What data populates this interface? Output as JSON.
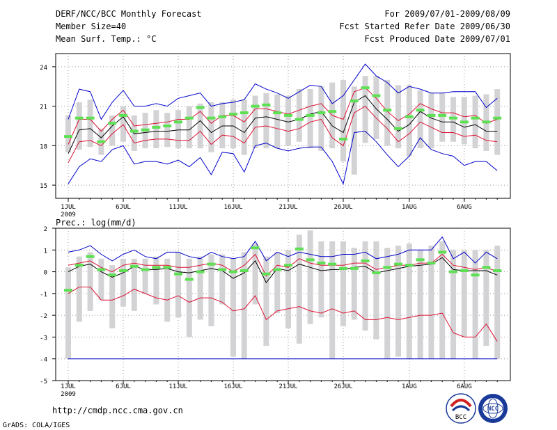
{
  "header": {
    "title": "DERF/NCC/BCC Monthly Forecast",
    "member_size": "Member Size=40",
    "variable": "Mean Surf. Temp.: °C",
    "period": "For 2009/07/01-2009/08/09",
    "fcst_started": "Fcst Started Refer Date 2009/06/30",
    "fcst_produced": "Fcst Produced Date 2009/07/01"
  },
  "footer": {
    "url": "http://cmdp.ncc.cma.gov.cn",
    "grads": "GrADS: COLA/IGES",
    "logo_bcc_label": "BCC",
    "logo_ncc_label": "NCC"
  },
  "colors": {
    "box": "#d3d3d5",
    "median": "#5de052",
    "mean": "#000000",
    "std": "#dd1133",
    "envelope": "#0000cc",
    "grid": "#999999"
  },
  "chart_data": [
    {
      "type": "box-line",
      "title": "Mean Surf. Temp.: °C",
      "xlabel": "",
      "ylabel": "°C",
      "ylim": [
        14,
        25
      ],
      "yticks": [
        15,
        18,
        21,
        24
      ],
      "ytick_labels": [
        "15",
        "18",
        "21",
        "24"
      ],
      "xticks": [
        1,
        6,
        11,
        16,
        21,
        26,
        32,
        37
      ],
      "xtick_labels": [
        "1JUL",
        "6JUL",
        "11JUL",
        "16JUL",
        "21JUL",
        "26JUL",
        "1AUG",
        "6AUG"
      ],
      "year_label": "2009",
      "days": [
        1,
        2,
        3,
        4,
        5,
        6,
        7,
        8,
        9,
        10,
        11,
        12,
        13,
        14,
        15,
        16,
        17,
        18,
        19,
        20,
        21,
        22,
        23,
        24,
        25,
        26,
        27,
        28,
        29,
        30,
        31,
        32,
        33,
        34,
        35,
        36,
        37,
        38,
        39,
        40
      ],
      "box_low": [
        17.5,
        17.7,
        17.9,
        17.3,
        18.0,
        18.3,
        17.6,
        17.8,
        17.8,
        17.9,
        17.8,
        17.8,
        17.8,
        17.5,
        17.8,
        17.8,
        17.3,
        17.8,
        17.8,
        17.8,
        18.0,
        18.3,
        17.8,
        17.6,
        17.8,
        16.8,
        15.8,
        18.2,
        18.5,
        18.0,
        17.8,
        17.2,
        17.8,
        17.8,
        18.3,
        18.3,
        18.1,
        17.8,
        17.6,
        17.3
      ],
      "box_high": [
        20.3,
        21.3,
        21.5,
        19.3,
        20.3,
        21.0,
        20.3,
        20.5,
        20.7,
        20.5,
        20.7,
        21.0,
        21.2,
        21.3,
        21.3,
        21.5,
        21.5,
        21.8,
        22.0,
        21.9,
        21.8,
        22.3,
        22.3,
        22.5,
        22.8,
        23.0,
        22.5,
        23.3,
        23.3,
        23.0,
        22.6,
        22.6,
        22.2,
        22.0,
        22.0,
        21.7,
        21.7,
        21.8,
        21.9,
        22.3
      ],
      "median": [
        18.7,
        20.1,
        20.1,
        18.3,
        19.7,
        20.3,
        19.1,
        19.2,
        19.4,
        19.5,
        19.8,
        20.1,
        20.9,
        20.1,
        20.2,
        20.4,
        20.5,
        21.0,
        21.1,
        20.5,
        20.3,
        20.0,
        20.3,
        20.5,
        20.6,
        18.5,
        21.4,
        22.4,
        21.8,
        20.7,
        19.3,
        20.2,
        20.7,
        20.3,
        20.3,
        20.1,
        19.8,
        20.1,
        19.8,
        20.1
      ],
      "mean": [
        17.4,
        19.2,
        19.3,
        18.6,
        19.5,
        20.2,
        18.9,
        19.0,
        19.1,
        19.1,
        19.2,
        19.2,
        19.9,
        19.0,
        19.5,
        19.5,
        19.0,
        20.1,
        20.2,
        20.0,
        19.8,
        20.0,
        20.4,
        20.6,
        19.5,
        19.0,
        21.3,
        21.8,
        20.8,
        20.0,
        19.1,
        19.6,
        20.6,
        20.1,
        19.8,
        19.8,
        19.4,
        19.6,
        19.1,
        19.1
      ],
      "std_high": [
        18.1,
        20.0,
        20.0,
        19.1,
        20.0,
        20.7,
        19.5,
        19.6,
        19.7,
        19.8,
        20.0,
        20.0,
        20.6,
        19.7,
        20.3,
        20.3,
        19.8,
        20.8,
        20.8,
        20.6,
        20.4,
        20.7,
        21.0,
        21.2,
        20.3,
        20.0,
        22.1,
        22.4,
        21.6,
        20.6,
        19.9,
        20.4,
        21.2,
        20.8,
        20.5,
        20.5,
        20.2,
        20.3,
        19.7,
        20.0
      ],
      "std_low": [
        16.7,
        18.3,
        18.4,
        18.0,
        18.9,
        19.6,
        18.2,
        18.4,
        18.5,
        18.5,
        18.4,
        18.4,
        19.1,
        18.1,
        18.8,
        18.7,
        18.2,
        19.4,
        19.5,
        19.3,
        19.1,
        19.3,
        19.8,
        20.0,
        18.6,
        18.0,
        20.5,
        21.0,
        20.1,
        19.3,
        18.3,
        18.9,
        19.8,
        19.4,
        19.0,
        19.0,
        18.7,
        18.8,
        18.4,
        18.3
      ],
      "max": [
        20.0,
        22.3,
        22.1,
        20.0,
        21.3,
        22.2,
        21.0,
        21.0,
        21.2,
        21.0,
        21.6,
        21.8,
        22.0,
        21.0,
        21.2,
        21.3,
        21.5,
        22.7,
        22.3,
        22.0,
        21.6,
        22.1,
        22.6,
        22.5,
        21.2,
        21.8,
        23.0,
        24.2,
        23.3,
        22.8,
        22.0,
        22.5,
        22.3,
        22.0,
        22.0,
        22.1,
        22.1,
        22.1,
        20.9,
        21.6
      ],
      "min": [
        15.1,
        16.4,
        17.0,
        16.8,
        17.7,
        18.0,
        16.6,
        16.8,
        16.8,
        16.6,
        16.9,
        16.4,
        17.1,
        15.8,
        17.5,
        17.4,
        16.0,
        18.0,
        18.2,
        17.8,
        17.6,
        17.8,
        17.9,
        17.9,
        16.8,
        15.1,
        19.0,
        19.1,
        18.3,
        17.3,
        16.4,
        17.2,
        18.6,
        17.7,
        17.4,
        17.2,
        16.5,
        16.8,
        16.8,
        16.1
      ]
    },
    {
      "type": "box-line",
      "title": "Prec.: log(mm/d)",
      "xlabel": "",
      "ylabel": "log(mm/d)",
      "ylim": [
        -5,
        2
      ],
      "yticks": [
        -5,
        -4,
        -3,
        -2,
        -1,
        0,
        1,
        2
      ],
      "ytick_labels": [
        "-5",
        "-4",
        "-3",
        "-2",
        "-1",
        "0",
        "1",
        "2"
      ],
      "xticks": [
        1,
        6,
        11,
        16,
        21,
        26,
        32,
        37
      ],
      "xtick_labels": [
        "1JUL",
        "6JUL",
        "11JUL",
        "16JUL",
        "21JUL",
        "26JUL",
        "1AUG",
        "6AUG"
      ],
      "year_label": "2009",
      "days": [
        1,
        2,
        3,
        4,
        5,
        6,
        7,
        8,
        9,
        10,
        11,
        12,
        13,
        14,
        15,
        16,
        17,
        18,
        19,
        20,
        21,
        22,
        23,
        24,
        25,
        26,
        27,
        28,
        29,
        30,
        31,
        32,
        33,
        34,
        35,
        36,
        37,
        38,
        39,
        40
      ],
      "box_low": [
        -4.0,
        -2.3,
        -1.8,
        -1.3,
        -2.6,
        -1.6,
        -1.8,
        -1.0,
        -1.5,
        -2.3,
        -2.1,
        -3.0,
        -2.2,
        -2.5,
        -1.5,
        -3.9,
        -4.0,
        -1.5,
        -3.4,
        -1.9,
        -2.6,
        -3.3,
        -2.4,
        -2.1,
        -4.0,
        -2.5,
        -2.2,
        -2.7,
        -3.1,
        -4.0,
        -3.9,
        -4.0,
        -4.0,
        -4.0,
        -4.0,
        -4.0,
        -3.0,
        -4.0,
        -3.4,
        -4.0
      ],
      "box_high": [
        0.2,
        0.7,
        0.9,
        0.6,
        0.3,
        0.6,
        0.6,
        0.6,
        0.7,
        0.6,
        0.9,
        0.6,
        0.7,
        0.8,
        0.8,
        0.6,
        0.9,
        1.3,
        0.7,
        0.9,
        1.0,
        1.7,
        1.9,
        1.4,
        1.4,
        1.4,
        1.1,
        1.4,
        1.4,
        1.1,
        1.2,
        1.3,
        1.0,
        1.2,
        1.4,
        1.0,
        1.0,
        1.0,
        1.0,
        1.2
      ],
      "median": [
        -0.85,
        0.3,
        0.7,
        0.1,
        -0.15,
        0.05,
        0.25,
        0.1,
        0.2,
        0.2,
        -0.1,
        -0.35,
        0.0,
        0.35,
        0.1,
        0.0,
        0.05,
        1.1,
        -0.1,
        0.1,
        0.3,
        1.05,
        0.55,
        0.4,
        0.35,
        0.15,
        0.15,
        0.5,
        -0.05,
        0.2,
        0.35,
        0.3,
        0.55,
        0.4,
        0.9,
        0.0,
        0.05,
        -0.15,
        0.2,
        0.05
      ],
      "mean": [
        0.0,
        0.25,
        0.35,
        0.0,
        -0.25,
        -0.05,
        0.25,
        0.1,
        0.1,
        0.15,
        0.0,
        -0.05,
        0.05,
        0.15,
        0.05,
        -0.3,
        -0.05,
        0.5,
        -0.5,
        0.15,
        0.05,
        0.35,
        0.2,
        0.05,
        0.1,
        0.1,
        0.2,
        0.25,
        -0.05,
        0.05,
        0.15,
        0.25,
        0.3,
        0.35,
        0.65,
        0.1,
        0.05,
        0.05,
        0.05,
        -0.15
      ],
      "std_high": [
        0.3,
        0.4,
        0.5,
        0.2,
        0.0,
        0.3,
        0.4,
        0.3,
        0.3,
        0.3,
        0.2,
        0.2,
        0.3,
        0.4,
        0.3,
        0.0,
        0.3,
        0.8,
        -0.2,
        0.3,
        0.2,
        0.6,
        0.4,
        0.3,
        0.3,
        0.3,
        0.4,
        0.4,
        0.1,
        0.2,
        0.3,
        0.3,
        0.4,
        0.4,
        0.8,
        0.3,
        0.2,
        0.1,
        0.2,
        0.0
      ],
      "std_low": [
        -1.0,
        -0.7,
        -0.7,
        -1.3,
        -1.3,
        -1.1,
        -0.8,
        -1.0,
        -1.2,
        -1.3,
        -1.1,
        -1.4,
        -1.2,
        -1.2,
        -1.4,
        -1.8,
        -1.7,
        -1.1,
        -2.2,
        -1.8,
        -1.7,
        -1.6,
        -1.8,
        -1.9,
        -1.7,
        -1.9,
        -1.8,
        -2.2,
        -2.2,
        -2.1,
        -2.2,
        -2.1,
        -2.0,
        -2.0,
        -1.9,
        -2.8,
        -3.0,
        -3.0,
        -2.4,
        -3.2
      ],
      "max": [
        0.9,
        1.0,
        1.2,
        0.8,
        0.5,
        0.8,
        1.0,
        0.7,
        0.6,
        0.9,
        0.9,
        0.7,
        0.6,
        0.9,
        0.7,
        0.6,
        0.7,
        1.4,
        0.5,
        0.9,
        0.7,
        0.9,
        0.8,
        0.7,
        0.7,
        0.8,
        0.8,
        0.9,
        0.6,
        0.7,
        0.8,
        1.0,
        1.0,
        1.0,
        1.6,
        0.6,
        0.9,
        0.4,
        0.9,
        0.6
      ],
      "min": [
        -4.0,
        -4.0,
        -4.0,
        -4.0,
        -4.0,
        -4.0,
        -4.0,
        -4.0,
        -4.0,
        -4.0,
        -4.0,
        -4.0,
        -4.0,
        -4.0,
        -4.0,
        -4.0,
        -4.0,
        -4.0,
        -4.0,
        -4.0,
        -4.0,
        -4.0,
        -4.0,
        -4.0,
        -4.0,
        -4.0,
        -4.0,
        -4.0,
        -4.0,
        -4.0,
        -4.0,
        -4.0,
        -4.0,
        -4.0,
        -4.0,
        -4.0,
        -4.0,
        -4.0,
        -4.0,
        -4.0
      ]
    }
  ]
}
